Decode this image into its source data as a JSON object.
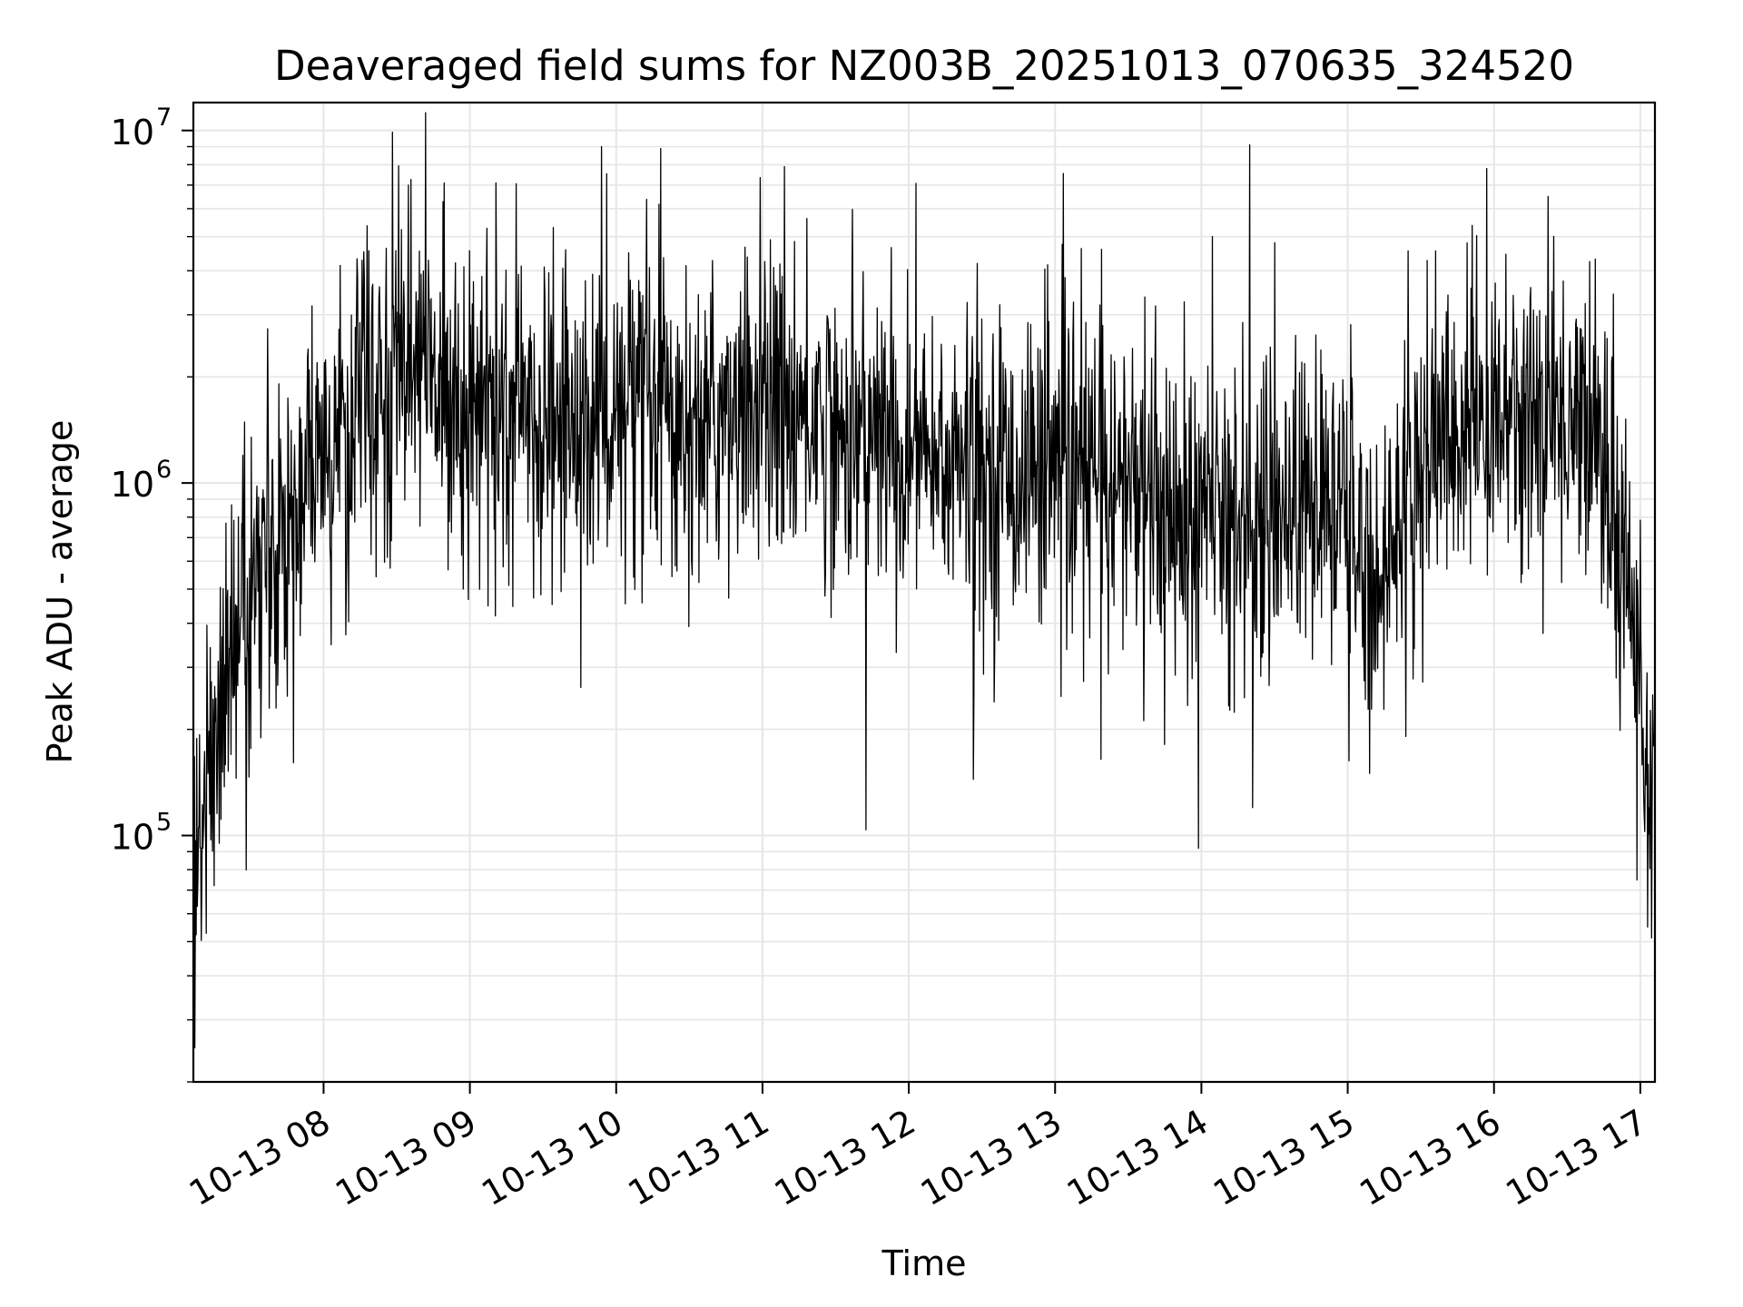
{
  "chart_data": {
    "type": "line",
    "title": "Deaveraged field sums for NZ003B_20251013_070635_324520",
    "xlabel": "Time",
    "ylabel": "Peak ADU - average",
    "yscale": "log",
    "ylim": [
      20000,
      12000000
    ],
    "xlim_hours": [
      7.11,
      17.1
    ],
    "grid": true,
    "line_color": "#000000",
    "grid_color": "#e6e6e6",
    "x_ticks": [
      {
        "hour": 8,
        "label": "10-13 08"
      },
      {
        "hour": 9,
        "label": "10-13 09"
      },
      {
        "hour": 10,
        "label": "10-13 10"
      },
      {
        "hour": 11,
        "label": "10-13 11"
      },
      {
        "hour": 12,
        "label": "10-13 12"
      },
      {
        "hour": 13,
        "label": "10-13 13"
      },
      {
        "hour": 14,
        "label": "10-13 14"
      },
      {
        "hour": 15,
        "label": "10-13 15"
      },
      {
        "hour": 16,
        "label": "10-13 16"
      },
      {
        "hour": 17,
        "label": "10-13 17"
      }
    ],
    "y_ticks": [
      {
        "value": 100000,
        "base": "10",
        "exp": "5"
      },
      {
        "value": 1000000,
        "base": "10",
        "exp": "6"
      },
      {
        "value": 10000000,
        "base": "10",
        "exp": "7"
      }
    ],
    "series": [
      {
        "name": "field sums",
        "envelope": {
          "hours": [
            7.11,
            7.3,
            7.6,
            7.9,
            8.2,
            8.6,
            9.0,
            9.5,
            10.0,
            10.5,
            11.0,
            11.5,
            12.0,
            12.5,
            13.0,
            13.5,
            14.0,
            14.5,
            15.0,
            15.2,
            15.5,
            15.9,
            16.3,
            16.7,
            16.9,
            17.0,
            17.1
          ],
          "median": [
            70000,
            250000,
            600000,
            1000000,
            1500000,
            2200000,
            1700000,
            1500000,
            1500000,
            1500000,
            1700000,
            1500000,
            1200000,
            1100000,
            1100000,
            1000000,
            800000,
            900000,
            800000,
            500000,
            1200000,
            1500000,
            1600000,
            1500000,
            600000,
            250000,
            120000
          ]
        },
        "peaks": [
          {
            "hour": 8.58,
            "value": 7000000
          },
          {
            "hour": 9.9,
            "value": 9000000
          },
          {
            "hour": 11.15,
            "value": 7900000
          },
          {
            "hour": 14.33,
            "value": 9100000
          },
          {
            "hour": 15.95,
            "value": 7800000
          }
        ],
        "dips": [
          {
            "hour": 7.12,
            "value": 25000
          },
          {
            "hour": 13.98,
            "value": 92000
          },
          {
            "hour": 14.35,
            "value": 120000
          },
          {
            "hour": 15.15,
            "value": 150000
          },
          {
            "hour": 17.05,
            "value": 55000
          }
        ]
      }
    ]
  }
}
